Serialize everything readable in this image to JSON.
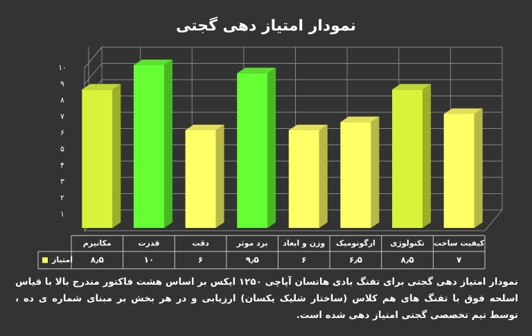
{
  "chart_data": {
    "type": "bar3d",
    "title": "نمودار امتیاز دهی گجتی",
    "categories": [
      "مکانیزم",
      "قدرت",
      "دقت",
      "برد موثر",
      "وزن و ابعاد",
      "ارگونومیک",
      "تکنولوژی",
      "کیفیت ساخت"
    ],
    "series": [
      {
        "name": "امتیاز",
        "color": "#ffff66",
        "values": [
          8.5,
          10,
          6,
          9.5,
          6,
          6.5,
          8.5,
          7
        ],
        "value_labels": [
          "۸٫۵",
          "۱۰",
          "۶",
          "۹٫۵",
          "۶",
          "۶٫۵",
          "۸٫۵",
          "۷"
        ],
        "colors": [
          "#d9f23a",
          "#66ff33",
          "#ffff66",
          "#66ff33",
          "#ffff66",
          "#ffff66",
          "#d9f23a",
          "#ffff66"
        ]
      }
    ],
    "ylim": [
      0,
      10
    ],
    "yticks": [
      {
        "value": 1,
        "label": "۱"
      },
      {
        "value": 2,
        "label": "۲"
      },
      {
        "value": 3,
        "label": "۳"
      },
      {
        "value": 4,
        "label": "۴"
      },
      {
        "value": 5,
        "label": "۵"
      },
      {
        "value": 6,
        "label": "۶"
      },
      {
        "value": 7,
        "label": "۷"
      },
      {
        "value": 8,
        "label": "۸"
      },
      {
        "value": 9,
        "label": "۹"
      },
      {
        "value": 10,
        "label": "۱۰"
      }
    ],
    "grid": true,
    "note": "نمودار امتیاز دهی گجتی برای تفنگ بادی هاتسان آپاچی ۱۲۵۰ ایکس بر اساس هشت فاکتور مندرج بالا با قیاس اسلحه فوق با تفنگ های هم کلاس (ساختار شلیک یکسان) ارزیابی و در هر بخش بر مبنای شماره ی ده ، توسط تیم تخصصی گجتی امتیاز دهی شده است."
  }
}
